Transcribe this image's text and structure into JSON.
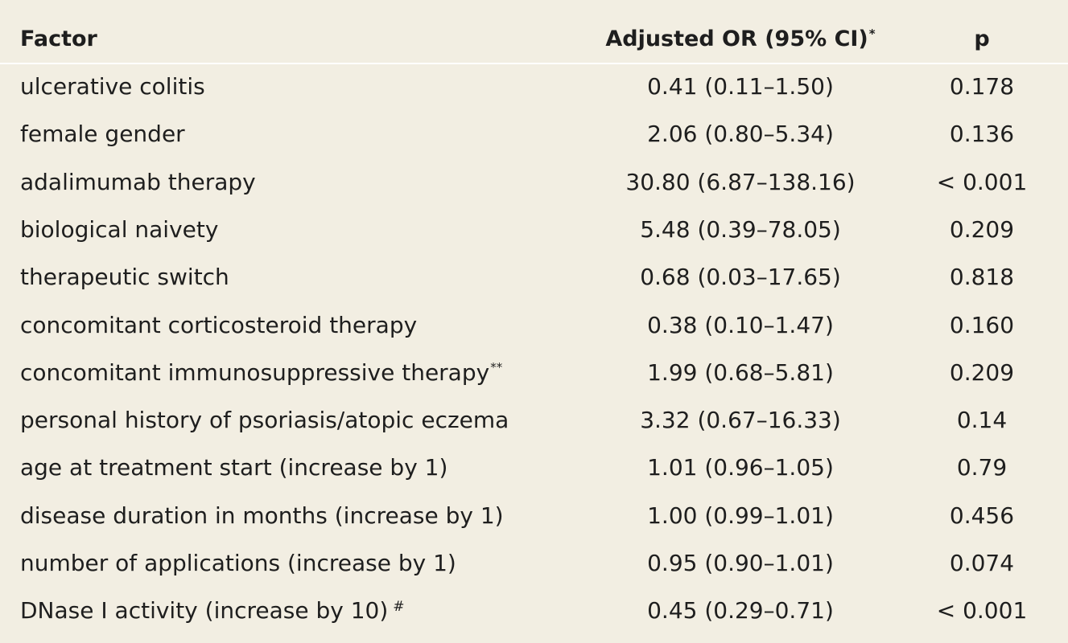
{
  "header": {
    "factor": "Factor",
    "or": "Adjusted OR (95% CI)",
    "or_mark": "*",
    "p": "p"
  },
  "rows": [
    {
      "factor": "ulcerative colitis",
      "mark": "",
      "or": "0.41 (0.11–1.50)",
      "p": "0.178"
    },
    {
      "factor": "female gender",
      "mark": "",
      "or": "2.06 (0.80–5.34)",
      "p": "0.136"
    },
    {
      "factor": "adalimumab therapy",
      "mark": "",
      "or": "30.80 (6.87–138.16)",
      "p": "< 0.001"
    },
    {
      "factor": "biological naivety",
      "mark": "",
      "or": "5.48 (0.39–78.05)",
      "p": "0.209"
    },
    {
      "factor": "therapeutic switch",
      "mark": "",
      "or": "0.68 (0.03–17.65)",
      "p": "0.818"
    },
    {
      "factor": "concomitant corticosteroid therapy",
      "mark": "",
      "or": "0.38 (0.10–1.47)",
      "p": "0.160"
    },
    {
      "factor": "concomitant immunosuppressive therapy",
      "mark": "**",
      "or": "1.99 (0.68–5.81)",
      "p": "0.209"
    },
    {
      "factor": "personal history of psoriasis/atopic eczema",
      "mark": "",
      "or": "3.32 (0.67–16.33)",
      "p": "0.14"
    },
    {
      "factor": "age at treatment start (increase by 1)",
      "mark": "",
      "or": "1.01 (0.96–1.05)",
      "p": "0.79"
    },
    {
      "factor": "disease duration in months (increase by 1)",
      "mark": "",
      "or": "1.00 (0.99–1.01)",
      "p": "0.456"
    },
    {
      "factor": "number of applications (increase by 1)",
      "mark": "",
      "or": "0.95 (0.90–1.01)",
      "p": "0.074"
    },
    {
      "factor": "DNase I activity (increase by 10)",
      "mark": "#",
      "or": "0.45 (0.29–0.71)",
      "p": "< 0.001"
    }
  ]
}
